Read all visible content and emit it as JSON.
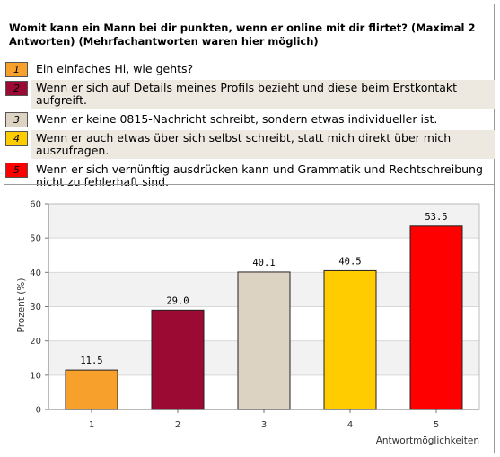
{
  "question": "Womit kann ein Mann bei dir punkten, wenn er online mit dir flirtet? (Maximal 2 Antworten) (Mehrfachantworten waren hier möglich)",
  "legend": [
    {
      "num": "1",
      "color": "#f7a12c",
      "text": "Ein einfaches Hi, wie gehts?"
    },
    {
      "num": "2",
      "color": "#9a0a33",
      "text": "Wenn er sich auf Details meines Profils bezieht und diese beim Erstkontakt aufgreift."
    },
    {
      "num": "3",
      "color": "#dcd3c2",
      "text": "Wenn er keine 0815-Nachricht schreibt, sondern etwas individueller ist."
    },
    {
      "num": "4",
      "color": "#ffcc00",
      "text": "Wenn er auch etwas über sich selbst schreibt, statt mich direkt über mich auszufragen."
    },
    {
      "num": "5",
      "color": "#ff0000",
      "text": "Wenn er sich vernünftig ausdrücken kann und Grammatik und Rechtschreibung nicht zu fehlerhaft sind."
    }
  ],
  "chart_data": {
    "type": "bar",
    "categories": [
      "1",
      "2",
      "3",
      "4",
      "5"
    ],
    "values": [
      11.5,
      29.0,
      40.1,
      40.5,
      53.5
    ],
    "value_labels": [
      "11.5",
      "29.0",
      "40.1",
      "40.5",
      "53.5"
    ],
    "colors": [
      "#f7a12c",
      "#9a0a33",
      "#dcd3c2",
      "#ffcc00",
      "#ff0000"
    ],
    "ylabel": "Prozent (%)",
    "xlabel": "Antwortmöglichkeiten",
    "ylim": [
      0,
      60
    ],
    "yticks": [
      "0",
      "10",
      "20",
      "30",
      "40",
      "50",
      "60"
    ],
    "grid": true,
    "grid_bands": true
  }
}
